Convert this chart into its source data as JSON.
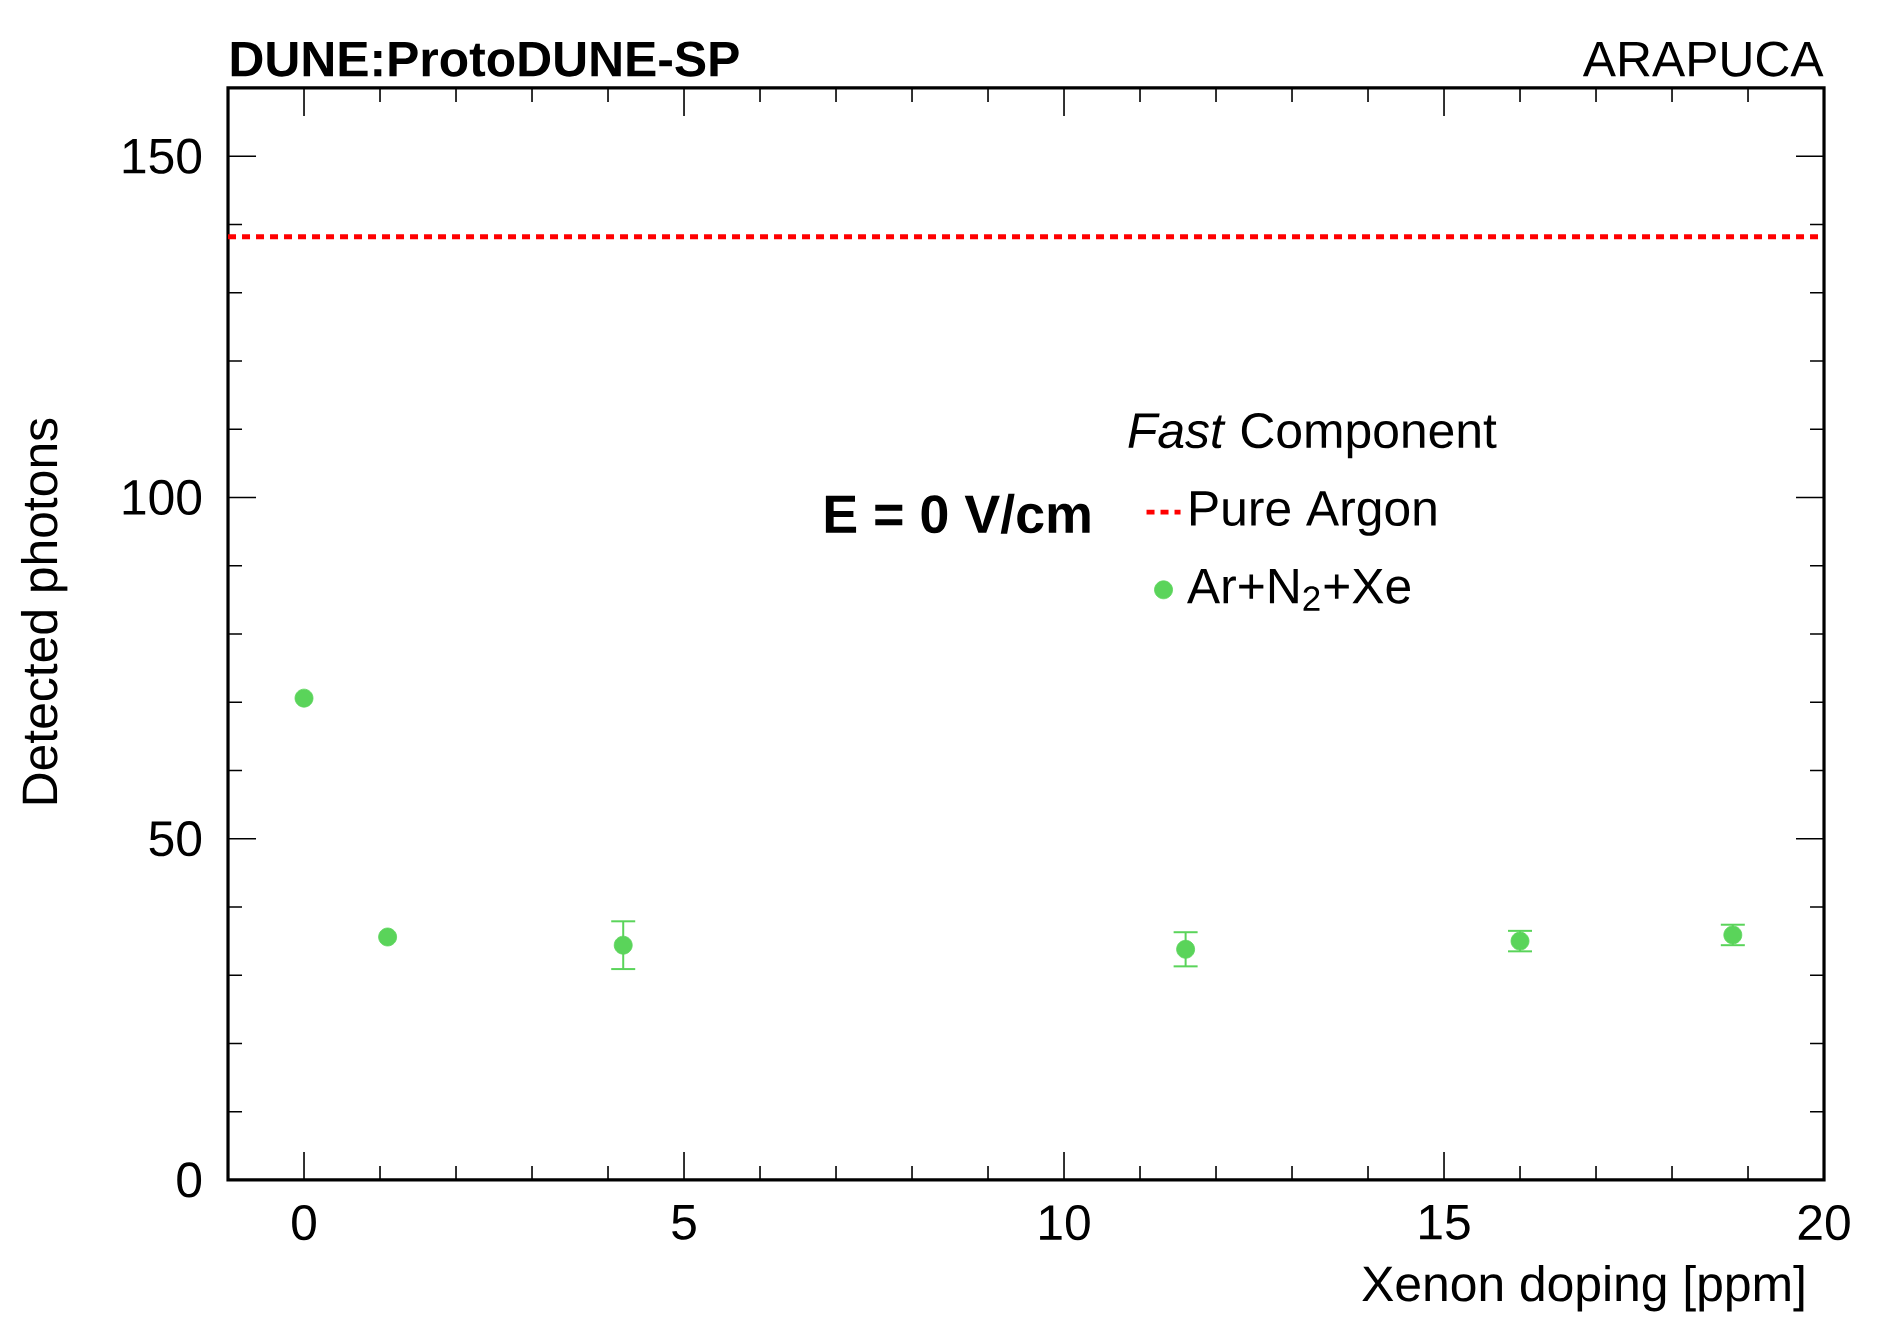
{
  "chart_data": {
    "type": "scatter",
    "title": "**DUNE:ProtoDUNE-SP**",
    "subtitle": "ARAPUCA",
    "xlabel": "Xenon doping [ppm]",
    "ylabel": "Detected photons",
    "legend_title": "*Fast* Component",
    "annotations": [
      "**E = 0 V/cm**"
    ],
    "series": [
      {
        "name": "Pure Argon",
        "type": "line",
        "color": "#ff0000",
        "line_style": "dotted",
        "marker": "none",
        "x": [
          -1,
          20
        ],
        "values": [
          138.2,
          138.2
        ]
      },
      {
        "name": "Ar+N$_{2}$+Xe",
        "color": "#5ad45a",
        "marker": "circle",
        "x": [
          0,
          1.1,
          4.2,
          11.6,
          16.0,
          18.8
        ],
        "values": [
          70.6,
          35.6,
          34.4,
          33.8,
          35.0,
          35.9
        ],
        "errors": [
          null,
          null,
          3.5,
          2.5,
          1.5,
          1.5
        ]
      }
    ],
    "xlim": [
      -1,
      20
    ],
    "ylim": [
      0,
      160
    ],
    "xticks": [
      0,
      5,
      10,
      15,
      20
    ],
    "yticks": [
      0,
      50,
      100,
      150
    ],
    "grid": false,
    "legend": "right"
  }
}
